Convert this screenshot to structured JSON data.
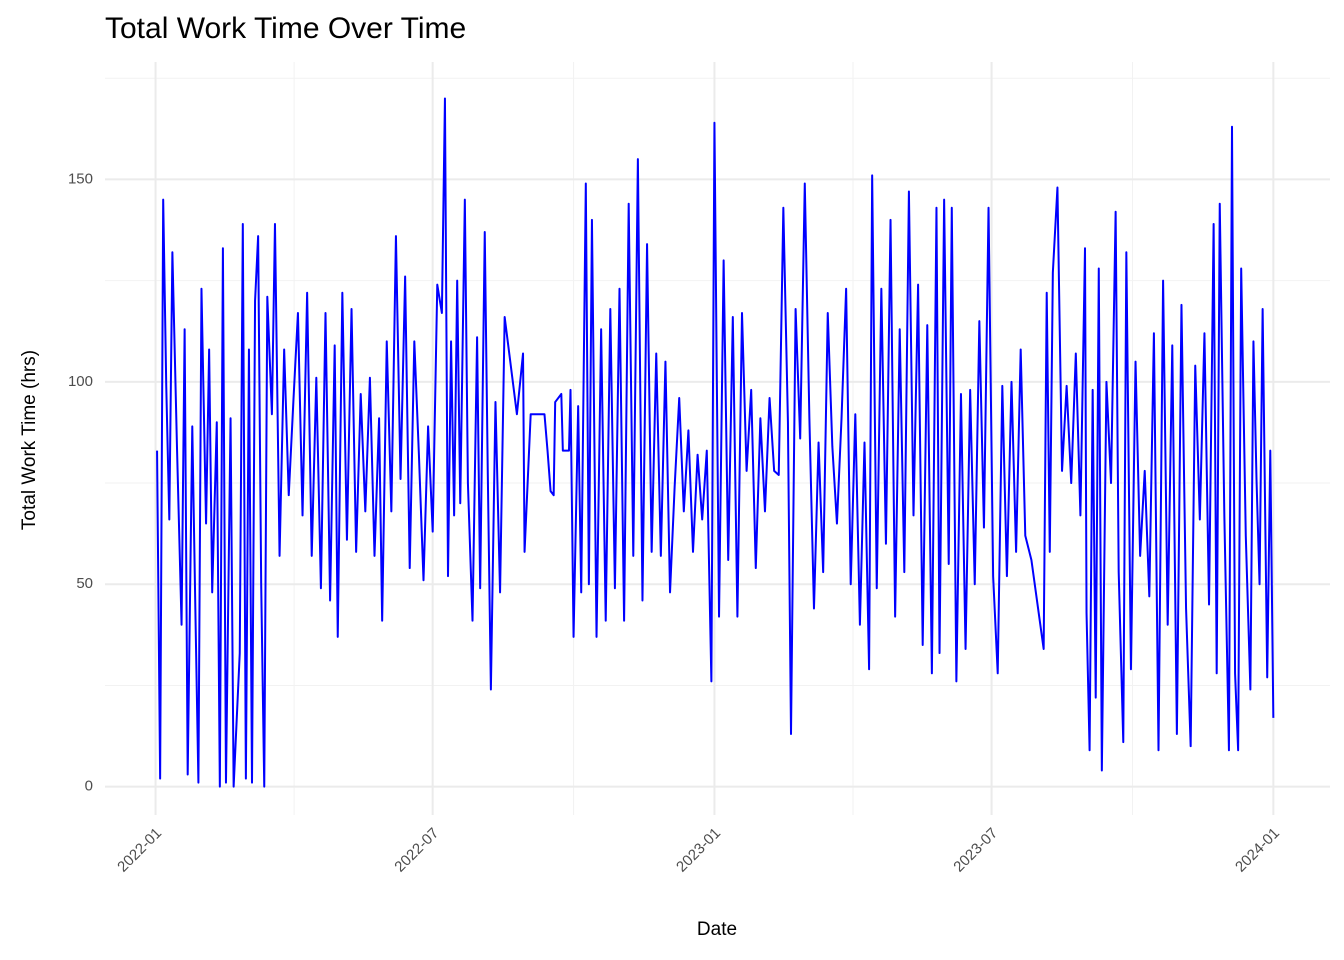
{
  "chart_data": {
    "type": "line",
    "title": "Total Work Time Over Time",
    "x_label": "Date",
    "y_label": "Total Work Time (hrs)",
    "color": "#0000ff",
    "grid": true,
    "xlim": [
      "2021-11-29",
      "2024-02-07"
    ],
    "ylim": [
      -7,
      179
    ],
    "xticks": [
      "2022-01",
      "2022-07",
      "2023-01",
      "2023-07",
      "2024-01"
    ],
    "yticks": [
      0,
      50,
      100,
      150
    ],
    "x": [
      "2022-01-02",
      "2022-01-04",
      "2022-01-06",
      "2022-01-08",
      "2022-01-10",
      "2022-01-12",
      "2022-01-15",
      "2022-01-18",
      "2022-01-20",
      "2022-01-22",
      "2022-01-25",
      "2022-01-27",
      "2022-01-29",
      "2022-01-31",
      "2022-02-03",
      "2022-02-05",
      "2022-02-07",
      "2022-02-10",
      "2022-02-12",
      "2022-02-14",
      "2022-02-16",
      "2022-02-19",
      "2022-02-21",
      "2022-02-25",
      "2022-02-27",
      "2022-03-01",
      "2022-03-03",
      "2022-03-05",
      "2022-03-07",
      "2022-03-09",
      "2022-03-11",
      "2022-03-13",
      "2022-03-15",
      "2022-03-18",
      "2022-03-20",
      "2022-03-23",
      "2022-03-26",
      "2022-03-29",
      "2022-04-01",
      "2022-04-04",
      "2022-04-07",
      "2022-04-10",
      "2022-04-13",
      "2022-04-16",
      "2022-04-19",
      "2022-04-22",
      "2022-04-25",
      "2022-04-28",
      "2022-04-30",
      "2022-05-03",
      "2022-05-06",
      "2022-05-09",
      "2022-05-12",
      "2022-05-15",
      "2022-05-18",
      "2022-05-21",
      "2022-05-24",
      "2022-05-27",
      "2022-05-29",
      "2022-06-01",
      "2022-06-04",
      "2022-06-07",
      "2022-06-10",
      "2022-06-13",
      "2022-06-16",
      "2022-06-19",
      "2022-06-22",
      "2022-06-25",
      "2022-06-28",
      "2022-07-01",
      "2022-07-04",
      "2022-07-07",
      "2022-07-09",
      "2022-07-11",
      "2022-07-13",
      "2022-07-15",
      "2022-07-17",
      "2022-07-19",
      "2022-07-22",
      "2022-07-24",
      "2022-07-27",
      "2022-07-30",
      "2022-08-01",
      "2022-08-04",
      "2022-08-06",
      "2022-08-08",
      "2022-08-11",
      "2022-08-14",
      "2022-08-17",
      "2022-08-25",
      "2022-08-29",
      "2022-08-30",
      "2022-09-03",
      "2022-09-12",
      "2022-09-14",
      "2022-09-16",
      "2022-09-18",
      "2022-09-19",
      "2022-09-23",
      "2022-09-24",
      "2022-09-28",
      "2022-09-29",
      "2022-10-01",
      "2022-10-04",
      "2022-10-06",
      "2022-10-09",
      "2022-10-11",
      "2022-10-13",
      "2022-10-16",
      "2022-10-19",
      "2022-10-22",
      "2022-10-25",
      "2022-10-28",
      "2022-10-31",
      "2022-11-03",
      "2022-11-06",
      "2022-11-09",
      "2022-11-12",
      "2022-11-15",
      "2022-11-18",
      "2022-11-21",
      "2022-11-24",
      "2022-11-27",
      "2022-11-30",
      "2022-12-03",
      "2022-12-06",
      "2022-12-09",
      "2022-12-12",
      "2022-12-15",
      "2022-12-18",
      "2022-12-21",
      "2022-12-24",
      "2022-12-27",
      "2022-12-30",
      "2023-01-01",
      "2023-01-04",
      "2023-01-07",
      "2023-01-10",
      "2023-01-13",
      "2023-01-16",
      "2023-01-19",
      "2023-01-22",
      "2023-01-25",
      "2023-01-28",
      "2023-01-31",
      "2023-02-03",
      "2023-02-06",
      "2023-02-09",
      "2023-02-12",
      "2023-02-15",
      "2023-02-18",
      "2023-02-20",
      "2023-02-23",
      "2023-02-26",
      "2023-03-01",
      "2023-03-04",
      "2023-03-07",
      "2023-03-10",
      "2023-03-13",
      "2023-03-16",
      "2023-03-19",
      "2023-03-22",
      "2023-03-25",
      "2023-03-28",
      "2023-03-31",
      "2023-04-03",
      "2023-04-06",
      "2023-04-09",
      "2023-04-12",
      "2023-04-14",
      "2023-04-17",
      "2023-04-20",
      "2023-04-23",
      "2023-04-26",
      "2023-04-29",
      "2023-05-02",
      "2023-05-05",
      "2023-05-08",
      "2023-05-11",
      "2023-05-14",
      "2023-05-17",
      "2023-05-20",
      "2023-05-23",
      "2023-05-26",
      "2023-05-28",
      "2023-05-31",
      "2023-06-03",
      "2023-06-05",
      "2023-06-08",
      "2023-06-11",
      "2023-06-14",
      "2023-06-17",
      "2023-06-20",
      "2023-06-23",
      "2023-06-26",
      "2023-06-29",
      "2023-07-02",
      "2023-07-05",
      "2023-07-08",
      "2023-07-11",
      "2023-07-14",
      "2023-07-17",
      "2023-07-20",
      "2023-07-23",
      "2023-07-27",
      "2023-08-04",
      "2023-08-06",
      "2023-08-08",
      "2023-08-10",
      "2023-08-13",
      "2023-08-16",
      "2023-08-19",
      "2023-08-22",
      "2023-08-25",
      "2023-08-28",
      "2023-08-31",
      "2023-09-01",
      "2023-09-03",
      "2023-09-05",
      "2023-09-07",
      "2023-09-09",
      "2023-09-11",
      "2023-09-14",
      "2023-09-17",
      "2023-09-20",
      "2023-09-22",
      "2023-09-25",
      "2023-09-27",
      "2023-09-30",
      "2023-10-03",
      "2023-10-06",
      "2023-10-09",
      "2023-10-12",
      "2023-10-15",
      "2023-10-18",
      "2023-10-21",
      "2023-10-24",
      "2023-10-27",
      "2023-10-30",
      "2023-11-02",
      "2023-11-05",
      "2023-11-08",
      "2023-11-11",
      "2023-11-14",
      "2023-11-17",
      "2023-11-20",
      "2023-11-23",
      "2023-11-25",
      "2023-11-27",
      "2023-11-30",
      "2023-12-03",
      "2023-12-05",
      "2023-12-07",
      "2023-12-09",
      "2023-12-11",
      "2023-12-14",
      "2023-12-17",
      "2023-12-19",
      "2023-12-21",
      "2023-12-23",
      "2023-12-25",
      "2023-12-28",
      "2023-12-30",
      "2024-01-01"
    ],
    "values": [
      83,
      2,
      145,
      99,
      66,
      132,
      84,
      40,
      113,
      3,
      89,
      44,
      1,
      123,
      65,
      108,
      48,
      90,
      0,
      133,
      1,
      91,
      0,
      33,
      139,
      2,
      108,
      1,
      120,
      136,
      50,
      0,
      121,
      92,
      139,
      57,
      108,
      72,
      95,
      117,
      67,
      122,
      57,
      101,
      49,
      117,
      46,
      109,
      37,
      122,
      61,
      118,
      58,
      97,
      68,
      101,
      57,
      91,
      41,
      110,
      68,
      136,
      76,
      126,
      54,
      110,
      82,
      51,
      89,
      63,
      124,
      117,
      170,
      52,
      110,
      67,
      125,
      70,
      145,
      75,
      41,
      111,
      49,
      137,
      77,
      24,
      95,
      48,
      116,
      92,
      107,
      58,
      92,
      92,
      83,
      73,
      72,
      95,
      97,
      83,
      83,
      98,
      37,
      94,
      48,
      149,
      50,
      140,
      37,
      113,
      41,
      118,
      49,
      123,
      41,
      144,
      57,
      155,
      46,
      134,
      58,
      107,
      57,
      105,
      48,
      74,
      96,
      68,
      88,
      58,
      82,
      66,
      83,
      26,
      164,
      42,
      130,
      56,
      116,
      42,
      117,
      78,
      98,
      54,
      91,
      68,
      96,
      78,
      77,
      143,
      90,
      13,
      118,
      86,
      149,
      91,
      44,
      85,
      53,
      117,
      84,
      65,
      91,
      123,
      50,
      92,
      40,
      85,
      29,
      151,
      49,
      123,
      60,
      140,
      42,
      113,
      53,
      147,
      67,
      124,
      35,
      114,
      28,
      143,
      33,
      145,
      55,
      143,
      26,
      97,
      34,
      98,
      50,
      115,
      64,
      143,
      52,
      28,
      99,
      52,
      100,
      58,
      108,
      62,
      56,
      34,
      122,
      58,
      127,
      148,
      78,
      99,
      75,
      107,
      67,
      133,
      43,
      9,
      98,
      22,
      128,
      4,
      100,
      75,
      142,
      53,
      11,
      132,
      29,
      105,
      57,
      78,
      47,
      112,
      9,
      125,
      40,
      109,
      13,
      119,
      44,
      10,
      104,
      66,
      112,
      45,
      139,
      28,
      144,
      67,
      9,
      163,
      28,
      9,
      128,
      62,
      24,
      110,
      76,
      50,
      118,
      27,
      83,
      17
    ]
  }
}
